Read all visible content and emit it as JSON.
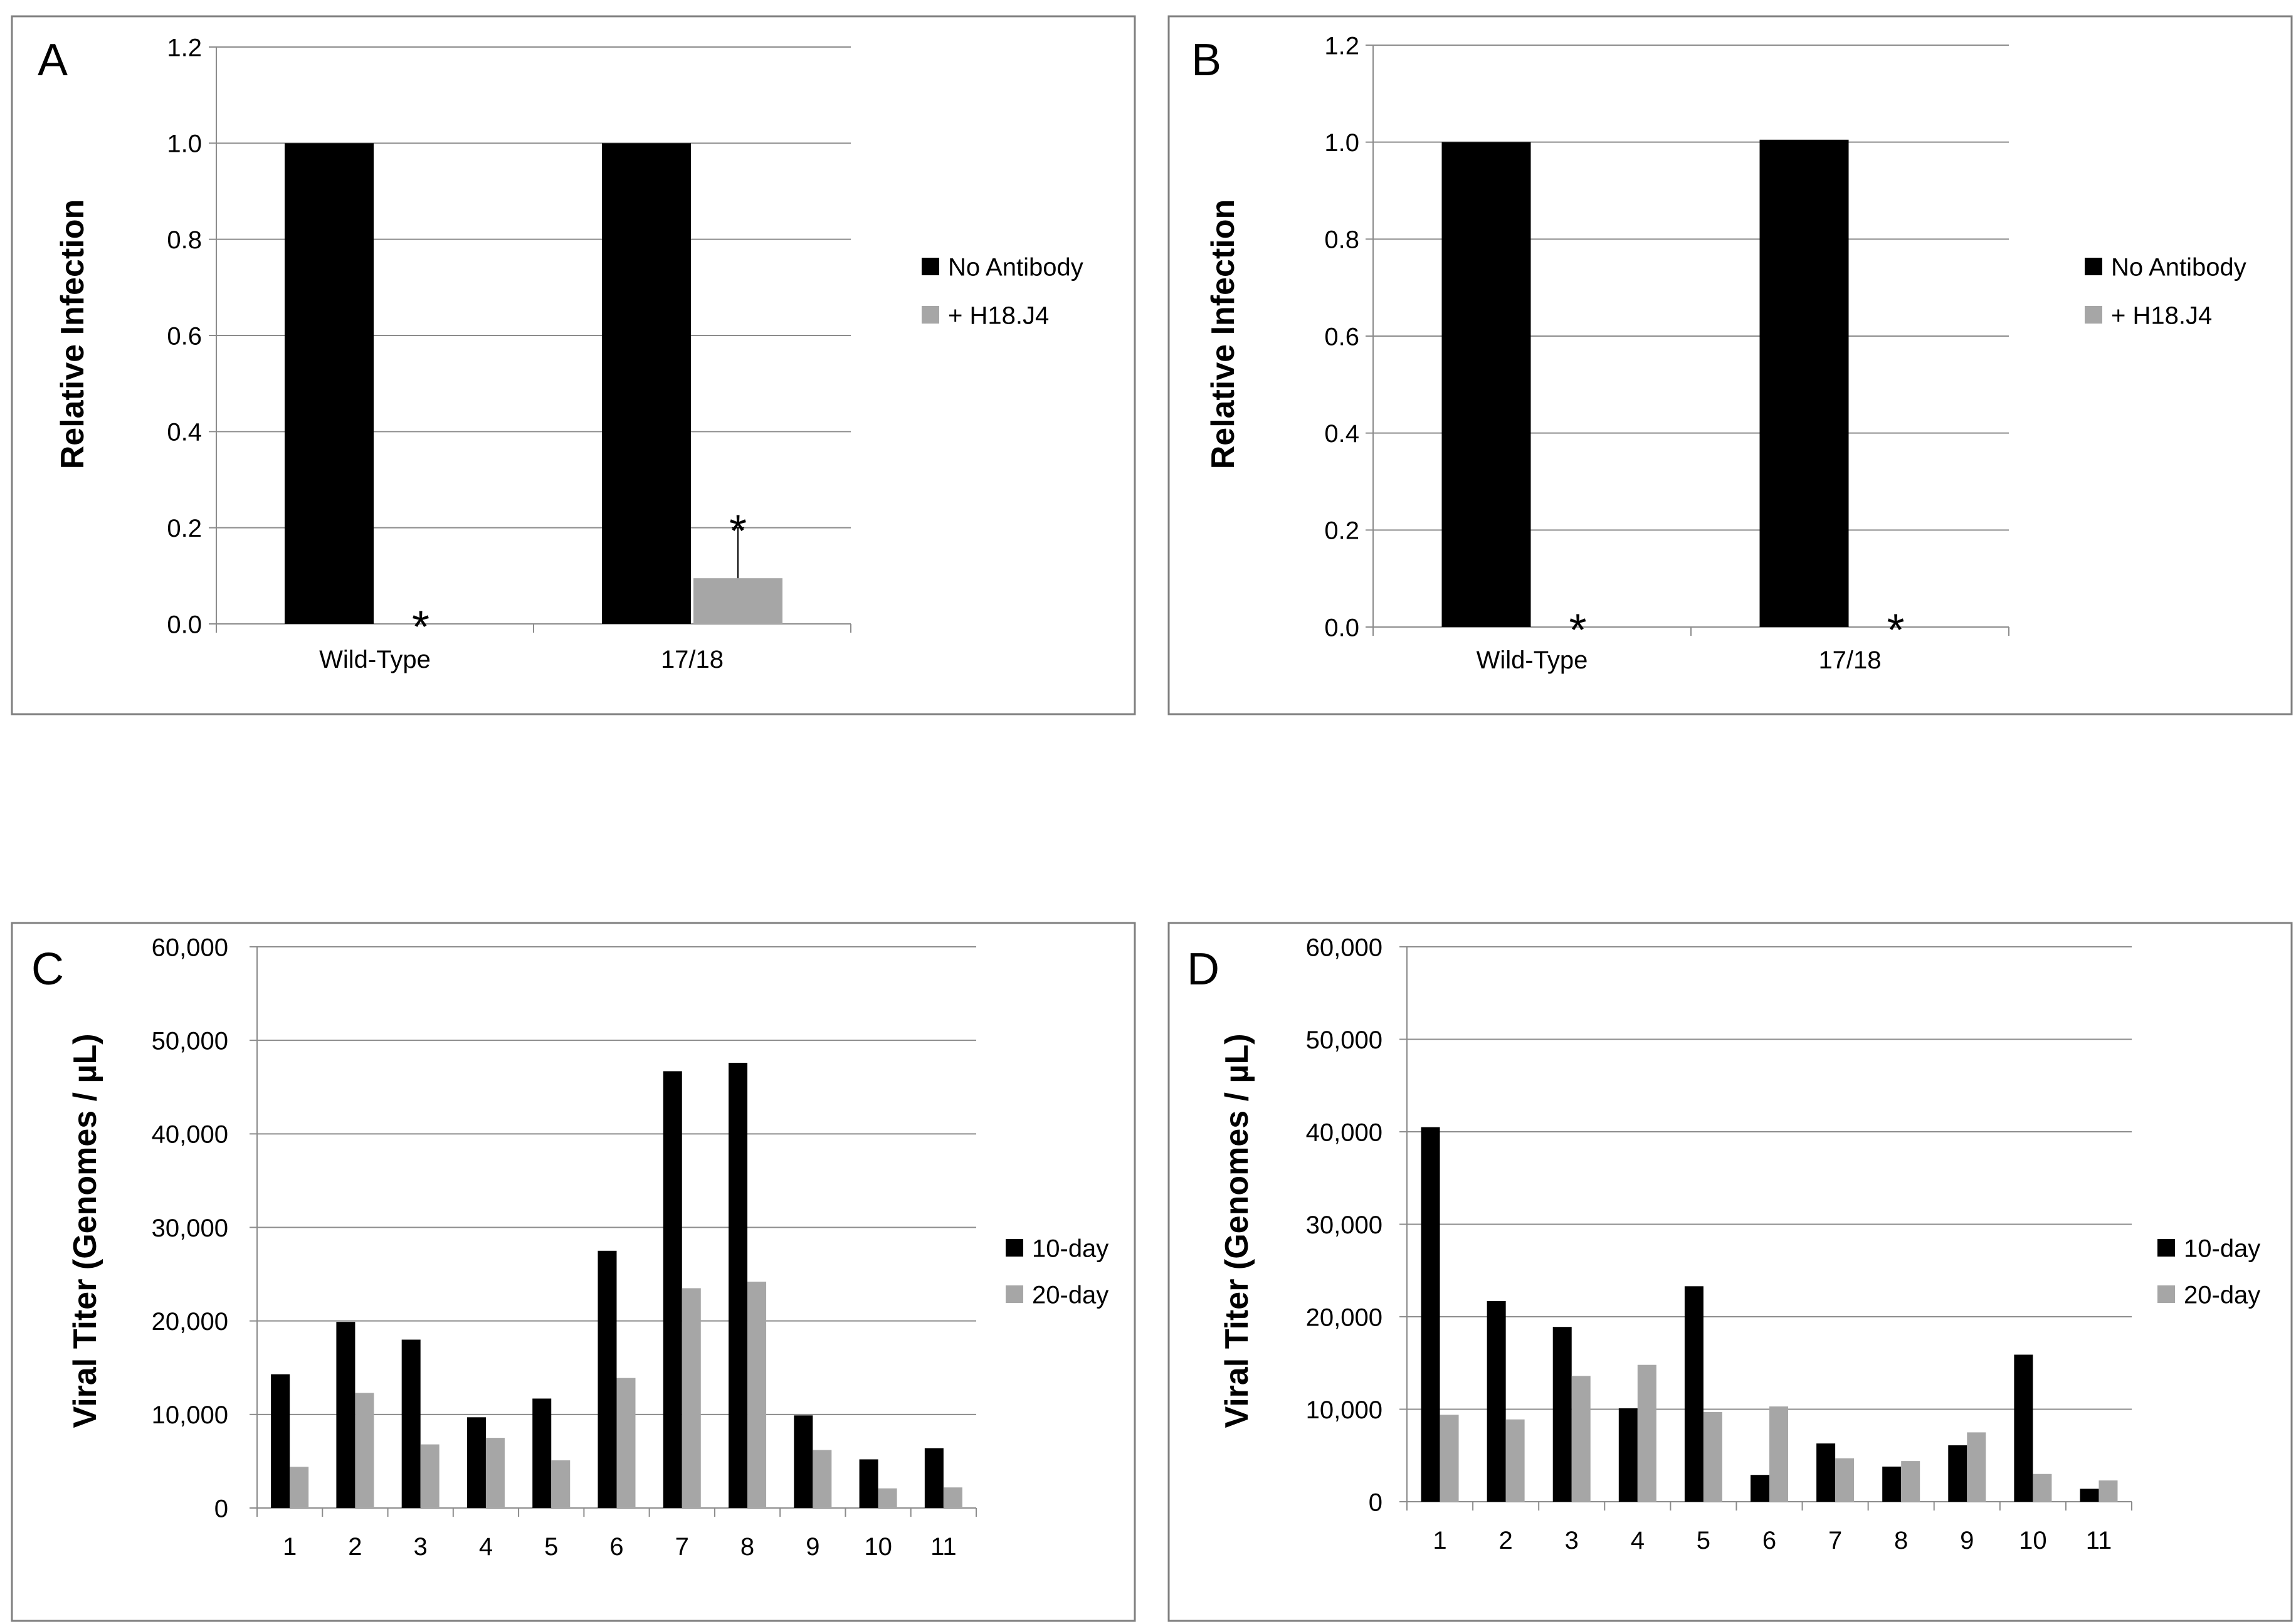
{
  "chart_data": [
    {
      "panel": "A",
      "type": "bar",
      "ylabel": "Relative Infection",
      "xlabel": "",
      "ylim": [
        0,
        1.2
      ],
      "yticks": [
        "0.0",
        "0.2",
        "0.4",
        "0.6",
        "0.8",
        "1.0",
        "1.2"
      ],
      "categories": [
        "Wild-Type",
        "17/18"
      ],
      "series": [
        {
          "name": "No Antibody",
          "color": "#000000",
          "values": [
            1.0,
            1.0
          ],
          "errors": [
            0,
            0
          ]
        },
        {
          "name": "+ H18.J4",
          "color": "#a6a6a6",
          "values": [
            0.0,
            0.095
          ],
          "errors": [
            0,
            0.105
          ]
        }
      ],
      "annotations": [
        {
          "text": "*",
          "category": 0,
          "series": 1
        },
        {
          "text": "*",
          "category": 1,
          "series": 1
        }
      ],
      "legend": "right",
      "grid": true
    },
    {
      "panel": "B",
      "type": "bar",
      "ylabel": "Relative Infection",
      "xlabel": "",
      "ylim": [
        0,
        1.2
      ],
      "yticks": [
        "0.0",
        "0.2",
        "0.4",
        "0.6",
        "0.8",
        "1.0",
        "1.2"
      ],
      "categories": [
        "Wild-Type",
        "17/18"
      ],
      "series": [
        {
          "name": "No Antibody",
          "color": "#000000",
          "values": [
            1.0,
            1.005
          ],
          "errors": [
            0,
            0
          ]
        },
        {
          "name": "+ H18.J4",
          "color": "#a6a6a6",
          "values": [
            0.0,
            0.0
          ],
          "errors": [
            0,
            0
          ]
        }
      ],
      "annotations": [
        {
          "text": "*",
          "category": 0,
          "series": 1
        },
        {
          "text": "*",
          "category": 1,
          "series": 1
        }
      ],
      "legend": "right",
      "grid": true
    },
    {
      "panel": "C",
      "type": "bar",
      "ylabel": "Viral Titer (Genomes / µL)",
      "xlabel": "",
      "ylim": [
        0,
        60000
      ],
      "yticks": [
        "0",
        "10,000",
        "20,000",
        "30,000",
        "40,000",
        "50,000",
        "60,000"
      ],
      "categories": [
        "1",
        "2",
        "3",
        "4",
        "5",
        "6",
        "7",
        "8",
        "9",
        "10",
        "11"
      ],
      "series": [
        {
          "name": "10-day",
          "color": "#000000",
          "values": [
            14300,
            19900,
            18000,
            9700,
            11700,
            27500,
            46700,
            47600,
            9900,
            5200,
            6400
          ]
        },
        {
          "name": "20-day",
          "color": "#a6a6a6",
          "values": [
            4400,
            12300,
            6800,
            7500,
            5100,
            13900,
            23500,
            24200,
            6200,
            2100,
            2200
          ]
        }
      ],
      "annotations": [],
      "legend": "right",
      "grid": true
    },
    {
      "panel": "D",
      "type": "bar",
      "ylabel": "Viral Titer (Genomes / µL)",
      "xlabel": "",
      "ylim": [
        0,
        60000
      ],
      "yticks": [
        "0",
        "10,000",
        "20,000",
        "30,000",
        "40,000",
        "50,000",
        "60,000"
      ],
      "categories": [
        "1",
        "2",
        "3",
        "4",
        "5",
        "6",
        "7",
        "8",
        "9",
        "10",
        "11"
      ],
      "series": [
        {
          "name": "10-day",
          "color": "#000000",
          "values": [
            40500,
            21700,
            18900,
            10100,
            23300,
            2900,
            6300,
            3800,
            6100,
            15900,
            1400
          ]
        },
        {
          "name": "20-day",
          "color": "#a6a6a6",
          "values": [
            9400,
            8900,
            13600,
            14800,
            9700,
            10300,
            4700,
            4400,
            7500,
            3000,
            2300
          ]
        }
      ],
      "annotations": [],
      "legend": "right",
      "grid": true
    }
  ]
}
